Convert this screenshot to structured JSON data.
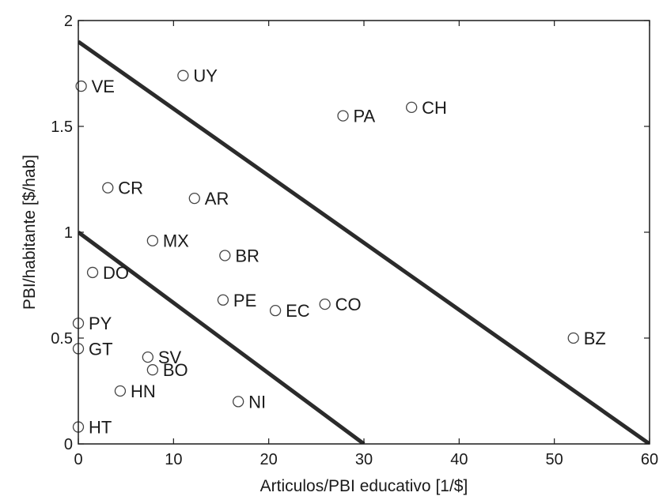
{
  "chart_data": {
    "type": "scatter",
    "xlabel": "Articulos/PBI educativo [1/$]",
    "ylabel": "PBI/habitante [$/hab]",
    "xlim": [
      0,
      60
    ],
    "ylim": [
      0,
      2
    ],
    "xticks": [
      0,
      10,
      20,
      30,
      40,
      50,
      60
    ],
    "xtick_labels": [
      "0",
      "10",
      "20",
      "30",
      "40",
      "50",
      "60"
    ],
    "yticks": [
      0,
      0.5,
      1,
      1.5,
      2
    ],
    "ytick_labels": [
      "0",
      "0.5",
      "1",
      "1.5",
      "2"
    ],
    "grid": false,
    "marker": "open-circle",
    "points": [
      {
        "label": "VE",
        "x": 0.3,
        "y": 1.69
      },
      {
        "label": "UY",
        "x": 11.0,
        "y": 1.74
      },
      {
        "label": "PA",
        "x": 27.8,
        "y": 1.55
      },
      {
        "label": "CH",
        "x": 35.0,
        "y": 1.59
      },
      {
        "label": "CR",
        "x": 3.1,
        "y": 1.21
      },
      {
        "label": "AR",
        "x": 12.2,
        "y": 1.16
      },
      {
        "label": "MX",
        "x": 7.8,
        "y": 0.96
      },
      {
        "label": "BR",
        "x": 15.4,
        "y": 0.89
      },
      {
        "label": "DO",
        "x": 1.5,
        "y": 0.81
      },
      {
        "label": "PE",
        "x": 15.2,
        "y": 0.68
      },
      {
        "label": "EC",
        "x": 20.7,
        "y": 0.63
      },
      {
        "label": "CO",
        "x": 25.9,
        "y": 0.66
      },
      {
        "label": "PY",
        "x": 0.0,
        "y": 0.57
      },
      {
        "label": "GT",
        "x": 0.0,
        "y": 0.45
      },
      {
        "label": "SV",
        "x": 7.3,
        "y": 0.41
      },
      {
        "label": "BO",
        "x": 7.8,
        "y": 0.35
      },
      {
        "label": "HN",
        "x": 4.4,
        "y": 0.25
      },
      {
        "label": "NI",
        "x": 16.8,
        "y": 0.2
      },
      {
        "label": "HT",
        "x": 0.0,
        "y": 0.08
      },
      {
        "label": "BZ",
        "x": 52.0,
        "y": 0.5
      }
    ],
    "lines": [
      {
        "x": [
          0,
          60
        ],
        "y": [
          1.9,
          0
        ]
      },
      {
        "x": [
          0,
          30
        ],
        "y": [
          1.0,
          0
        ]
      }
    ],
    "colors": {
      "line": "#2b2b2b",
      "marker": "#444444",
      "text": "#1a1a1a"
    }
  }
}
